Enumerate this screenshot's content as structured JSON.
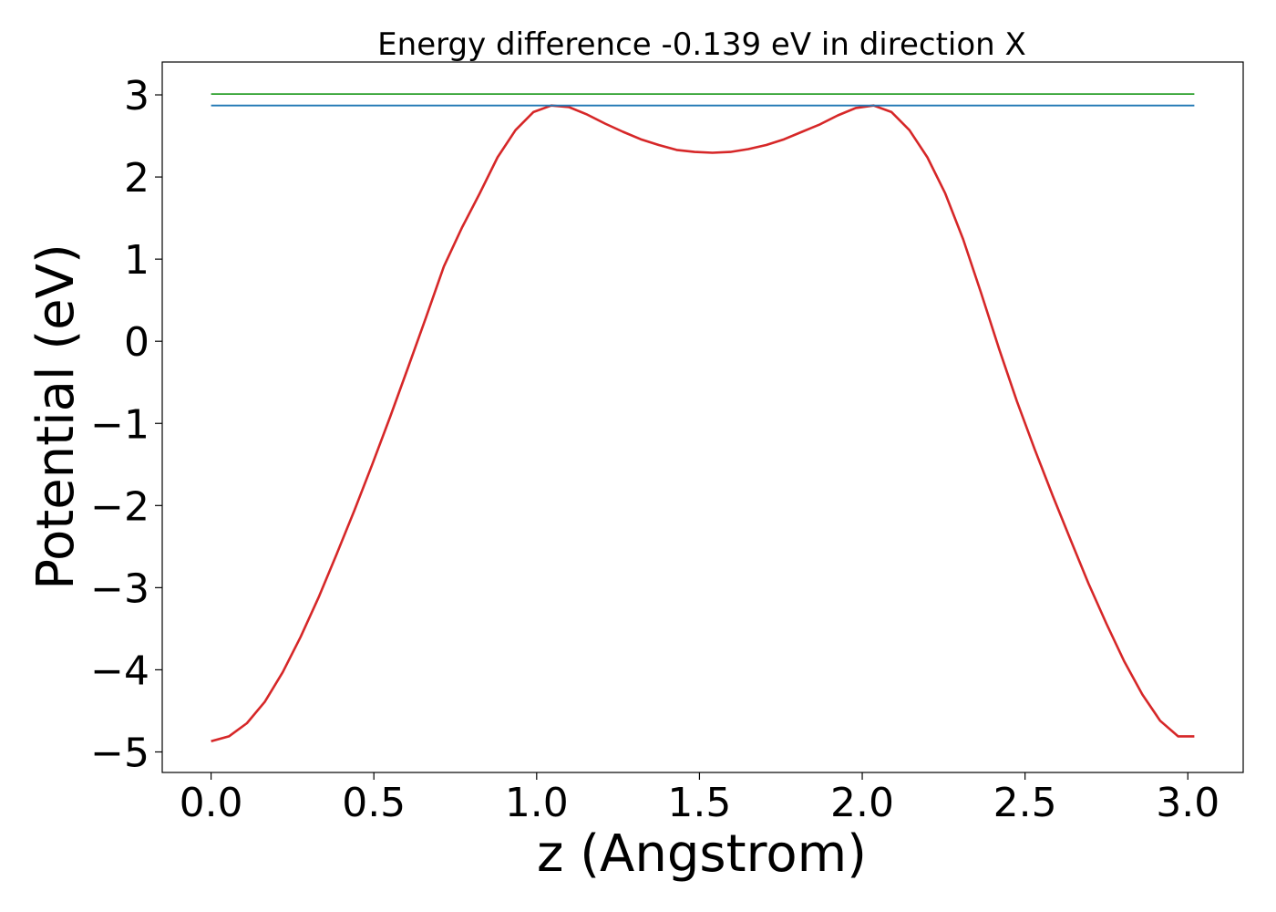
{
  "chart_data": {
    "type": "line",
    "title": "Energy difference -0.139 eV in direction X",
    "xlabel": "z (Angstrom)",
    "ylabel": "Potential (eV)",
    "xlim": [
      -0.15,
      3.17
    ],
    "ylim": [
      -5.25,
      3.4
    ],
    "xticks": [
      0.0,
      0.5,
      1.0,
      1.5,
      2.0,
      2.5,
      3.0
    ],
    "xtick_labels": [
      "0.0",
      "0.5",
      "1.0",
      "1.5",
      "2.0",
      "2.5",
      "3.0"
    ],
    "yticks": [
      3,
      2,
      1,
      0,
      -1,
      -2,
      -3,
      -4,
      -5
    ],
    "ytick_labels": [
      "3",
      "2",
      "1",
      "0",
      "−1",
      "−2",
      "−3",
      "−4",
      "−5"
    ],
    "grid": false,
    "series": [
      {
        "color": "#d62728",
        "points": [
          [
            0.0,
            -4.87
          ],
          [
            0.055,
            -4.81
          ],
          [
            0.11,
            -4.65
          ],
          [
            0.165,
            -4.39
          ],
          [
            0.22,
            -4.03
          ],
          [
            0.275,
            -3.6
          ],
          [
            0.33,
            -3.12
          ],
          [
            0.385,
            -2.6
          ],
          [
            0.44,
            -2.06
          ],
          [
            0.495,
            -1.5
          ],
          [
            0.55,
            -0.92
          ],
          [
            0.605,
            -0.32
          ],
          [
            0.66,
            0.29
          ],
          [
            0.715,
            0.91
          ],
          [
            0.77,
            1.38
          ],
          [
            0.825,
            1.8
          ],
          [
            0.88,
            2.24
          ],
          [
            0.935,
            2.57
          ],
          [
            0.99,
            2.79
          ],
          [
            1.045,
            2.87
          ],
          [
            1.1,
            2.85
          ],
          [
            1.155,
            2.76
          ],
          [
            1.21,
            2.65
          ],
          [
            1.265,
            2.55
          ],
          [
            1.32,
            2.46
          ],
          [
            1.375,
            2.39
          ],
          [
            1.43,
            2.33
          ],
          [
            1.485,
            2.305
          ],
          [
            1.54,
            2.295
          ],
          [
            1.595,
            2.305
          ],
          [
            1.65,
            2.34
          ],
          [
            1.705,
            2.39
          ],
          [
            1.76,
            2.46
          ],
          [
            1.815,
            2.55
          ],
          [
            1.87,
            2.64
          ],
          [
            1.925,
            2.75
          ],
          [
            1.98,
            2.84
          ],
          [
            2.035,
            2.87
          ],
          [
            2.09,
            2.79
          ],
          [
            2.145,
            2.57
          ],
          [
            2.2,
            2.24
          ],
          [
            2.255,
            1.8
          ],
          [
            2.31,
            1.24
          ],
          [
            2.365,
            0.59
          ],
          [
            2.42,
            -0.09
          ],
          [
            2.475,
            -0.73
          ],
          [
            2.53,
            -1.32
          ],
          [
            2.585,
            -1.88
          ],
          [
            2.64,
            -2.42
          ],
          [
            2.695,
            -2.95
          ],
          [
            2.75,
            -3.44
          ],
          [
            2.805,
            -3.9
          ],
          [
            2.86,
            -4.3
          ],
          [
            2.915,
            -4.62
          ],
          [
            2.97,
            -4.81
          ],
          [
            3.02,
            -4.81
          ]
        ]
      },
      {
        "color": "#1f77b4",
        "points": [
          [
            0.0,
            2.87
          ],
          [
            3.02,
            2.87
          ]
        ]
      },
      {
        "color": "#2ca02c",
        "points": [
          [
            0.0,
            3.01
          ],
          [
            3.02,
            3.01
          ]
        ]
      }
    ]
  }
}
